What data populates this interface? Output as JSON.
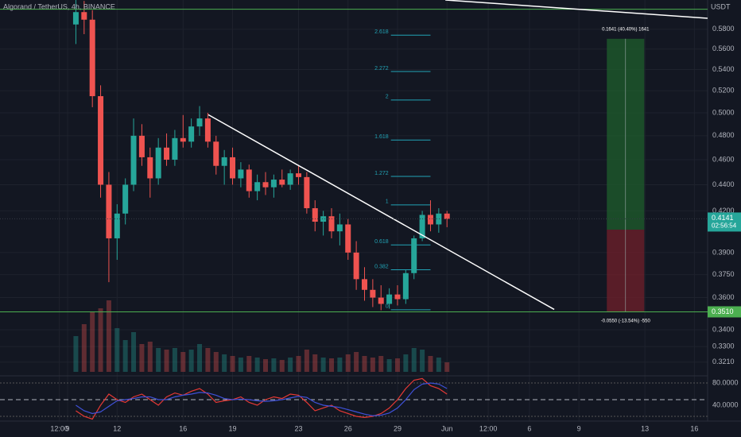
{
  "chart_data": {
    "type": "candlestick",
    "title": "Algorand / TetherUS, 4h, BINANCE",
    "currency": "USDT",
    "log_scale": true,
    "grid": true,
    "xlim": [
      4.9,
      47.8
    ],
    "xticks": [
      {
        "value": 8.5,
        "label": "12:00"
      },
      9,
      12,
      16,
      19,
      23,
      26,
      29,
      {
        "value": 32,
        "label": "Jun"
      },
      {
        "value": 34.5,
        "label": "12:00"
      },
      {
        "value": 37,
        "label": "6"
      },
      {
        "value": 40,
        "label": "9"
      },
      {
        "value": 44,
        "label": "13"
      },
      {
        "value": 47,
        "label": "16"
      }
    ],
    "ylim": [
      0.3146,
      0.611
    ],
    "yticks": [
      {
        "value": 0.58,
        "label": "0.5800"
      },
      {
        "value": 0.56,
        "label": "0.5600"
      },
      {
        "value": 0.54,
        "label": "0.5400"
      },
      {
        "value": 0.52,
        "label": "0.5200"
      },
      {
        "value": 0.5,
        "label": "0.5000"
      },
      {
        "value": 0.48,
        "label": "0.4800"
      },
      {
        "value": 0.46,
        "label": "0.4600"
      },
      {
        "value": 0.44,
        "label": "0.4400"
      },
      {
        "value": 0.42,
        "label": "0.4200"
      },
      {
        "value": 0.39,
        "label": "0.3900"
      },
      {
        "value": 0.375,
        "label": "0.3750"
      },
      {
        "value": 0.36,
        "label": "0.3600"
      },
      {
        "value": 0.34,
        "label": "0.3400"
      },
      {
        "value": 0.33,
        "label": "0.3300"
      },
      {
        "value": 0.321,
        "label": "0.3210"
      }
    ],
    "candles": {
      "up_color": "#26a69a",
      "down_color": "#ef5350",
      "x": [
        9.5,
        10,
        10.5,
        11,
        11.5,
        12,
        12.5,
        13,
        13.5,
        14,
        14.5,
        15,
        15.5,
        16,
        16.5,
        17,
        17.5,
        18,
        18.5,
        19,
        19.5,
        20,
        20.5,
        21,
        21.5,
        22,
        22.5,
        23,
        23.5,
        24,
        24.5,
        25,
        25.5,
        26,
        26.5,
        27,
        27.5,
        28,
        28.5,
        29,
        29.5,
        30,
        30.5,
        31,
        31.5,
        32
      ],
      "open": [
        0.585,
        0.598,
        0.59,
        0.515,
        0.44,
        0.4,
        0.418,
        0.44,
        0.48,
        0.462,
        0.445,
        0.47,
        0.46,
        0.478,
        0.475,
        0.488,
        0.495,
        0.475,
        0.455,
        0.462,
        0.445,
        0.452,
        0.435,
        0.442,
        0.438,
        0.444,
        0.44,
        0.449,
        0.446,
        0.422,
        0.412,
        0.416,
        0.405,
        0.41,
        0.39,
        0.372,
        0.365,
        0.36,
        0.356,
        0.362,
        0.359,
        0.376,
        0.4,
        0.417,
        0.41,
        0.418
      ],
      "high": [
        0.612,
        0.61,
        0.6,
        0.525,
        0.45,
        0.425,
        0.445,
        0.495,
        0.49,
        0.47,
        0.478,
        0.482,
        0.485,
        0.498,
        0.495,
        0.506,
        0.5,
        0.48,
        0.468,
        0.47,
        0.458,
        0.456,
        0.448,
        0.45,
        0.448,
        0.452,
        0.452,
        0.455,
        0.45,
        0.428,
        0.42,
        0.422,
        0.418,
        0.414,
        0.398,
        0.38,
        0.372,
        0.368,
        0.366,
        0.368,
        0.378,
        0.402,
        0.42,
        0.428,
        0.422,
        0.42
      ],
      "low": [
        0.565,
        0.575,
        0.505,
        0.43,
        0.37,
        0.385,
        0.41,
        0.435,
        0.455,
        0.43,
        0.44,
        0.455,
        0.455,
        0.47,
        0.47,
        0.48,
        0.47,
        0.448,
        0.44,
        0.44,
        0.438,
        0.43,
        0.428,
        0.432,
        0.43,
        0.438,
        0.436,
        0.44,
        0.418,
        0.405,
        0.402,
        0.4,
        0.395,
        0.385,
        0.365,
        0.358,
        0.354,
        0.352,
        0.353,
        0.355,
        0.356,
        0.372,
        0.398,
        0.405,
        0.404,
        0.408
      ],
      "close": [
        0.598,
        0.59,
        0.515,
        0.44,
        0.4,
        0.418,
        0.44,
        0.48,
        0.462,
        0.445,
        0.47,
        0.46,
        0.478,
        0.475,
        0.488,
        0.495,
        0.475,
        0.455,
        0.462,
        0.445,
        0.452,
        0.435,
        0.442,
        0.438,
        0.444,
        0.44,
        0.449,
        0.446,
        0.422,
        0.412,
        0.416,
        0.405,
        0.41,
        0.39,
        0.372,
        0.365,
        0.36,
        0.356,
        0.362,
        0.359,
        0.376,
        0.4,
        0.417,
        0.41,
        0.418,
        0.414
      ]
    },
    "volume": {
      "ylim": [
        0,
        100
      ],
      "values": [
        45,
        60,
        75,
        80,
        90,
        55,
        40,
        50,
        35,
        38,
        30,
        28,
        30,
        25,
        28,
        35,
        30,
        25,
        22,
        20,
        18,
        20,
        18,
        16,
        17,
        15,
        18,
        20,
        28,
        22,
        18,
        17,
        18,
        22,
        25,
        20,
        18,
        20,
        16,
        17,
        22,
        30,
        28,
        20,
        18,
        12
      ]
    },
    "stoch": {
      "ylim": [
        11.4,
        90
      ],
      "levels": [
        80,
        50,
        20
      ],
      "yticks": [
        {
          "value": 80,
          "label": "80.0000"
        },
        {
          "value": 40,
          "label": "40.0000"
        }
      ],
      "series": [
        {
          "color": "#e53935",
          "values": [
            30,
            20,
            15,
            40,
            60,
            50,
            45,
            55,
            60,
            50,
            40,
            55,
            62,
            58,
            65,
            70,
            60,
            45,
            48,
            50,
            55,
            45,
            40,
            50,
            55,
            52,
            60,
            58,
            45,
            30,
            35,
            40,
            30,
            25,
            20,
            18,
            20,
            25,
            35,
            50,
            70,
            85,
            88,
            75,
            70,
            60
          ]
        },
        {
          "color": "#3f51d8",
          "values": [
            40,
            30,
            25,
            28,
            38,
            48,
            50,
            52,
            55,
            55,
            50,
            50,
            55,
            58,
            60,
            63,
            62,
            58,
            52,
            50,
            51,
            50,
            48,
            47,
            48,
            50,
            53,
            56,
            54,
            45,
            40,
            38,
            36,
            32,
            28,
            24,
            21,
            22,
            26,
            35,
            50,
            68,
            78,
            80,
            78,
            70
          ]
        }
      ]
    },
    "trendlines": [
      {
        "x": [
          17.53,
          38.5
        ],
        "y": [
          0.4983,
          0.3525
        ]
      },
      {
        "x": [
          31.9,
          47.8
        ],
        "y": [
          0.611,
          0.5915
        ]
      }
    ],
    "price_lines": [
      {
        "value": 0.601,
        "color": "#4caf50"
      },
      {
        "value": 0.351,
        "label": "0.3510",
        "color": "#4caf50"
      }
    ],
    "last_price": {
      "value": 0.4141,
      "label": "0.4141",
      "countdown": "02:56:54",
      "color": "#26a69a"
    },
    "fib": {
      "x": [
        28.6,
        31.0
      ],
      "low": 0.3523,
      "high": 0.4245,
      "color": "#22a3b5",
      "levels": [
        0,
        0.382,
        0.618,
        1,
        1.272,
        1.618,
        2,
        2.272,
        2.618
      ]
    },
    "position": {
      "x": [
        41.69,
        43.96
      ],
      "entry": 0.4062,
      "target": 0.5703,
      "stop": 0.3512,
      "target_label": "0.1641 (40.40%) 1641",
      "stop_label": "-0.0550 (-13.54%) -550"
    }
  }
}
